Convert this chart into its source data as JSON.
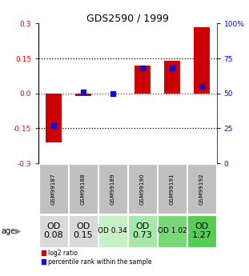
{
  "title": "GDS2590 / 1999",
  "samples": [
    "GSM99187",
    "GSM99188",
    "GSM99189",
    "GSM99190",
    "GSM99191",
    "GSM99192"
  ],
  "log2_ratio": [
    -0.21,
    -0.01,
    0.0,
    0.12,
    0.14,
    0.285
  ],
  "percentile_rank": [
    27,
    51,
    50,
    68,
    68,
    55
  ],
  "ylim": [
    -0.3,
    0.3
  ],
  "yticks_left": [
    -0.3,
    -0.15,
    0.0,
    0.15,
    0.3
  ],
  "yticks_right": [
    0,
    25,
    50,
    75,
    100
  ],
  "age_labels": [
    "OD\n0.08",
    "OD\n0.15",
    "OD 0.34",
    "OD\n0.73",
    "OD 1.02",
    "OD\n1.27"
  ],
  "age_fontsize": [
    8,
    8,
    6.5,
    8,
    6.5,
    8
  ],
  "age_colors": [
    "#d9d9d9",
    "#d9d9d9",
    "#c8f0c8",
    "#a8e8a8",
    "#78d878",
    "#55cc55"
  ],
  "bar_color_red": "#cc0000",
  "bar_color_blue": "#1111cc",
  "bg_color": "#ffffff",
  "sample_bg": "#c0c0c0",
  "grid_color": "#000000"
}
